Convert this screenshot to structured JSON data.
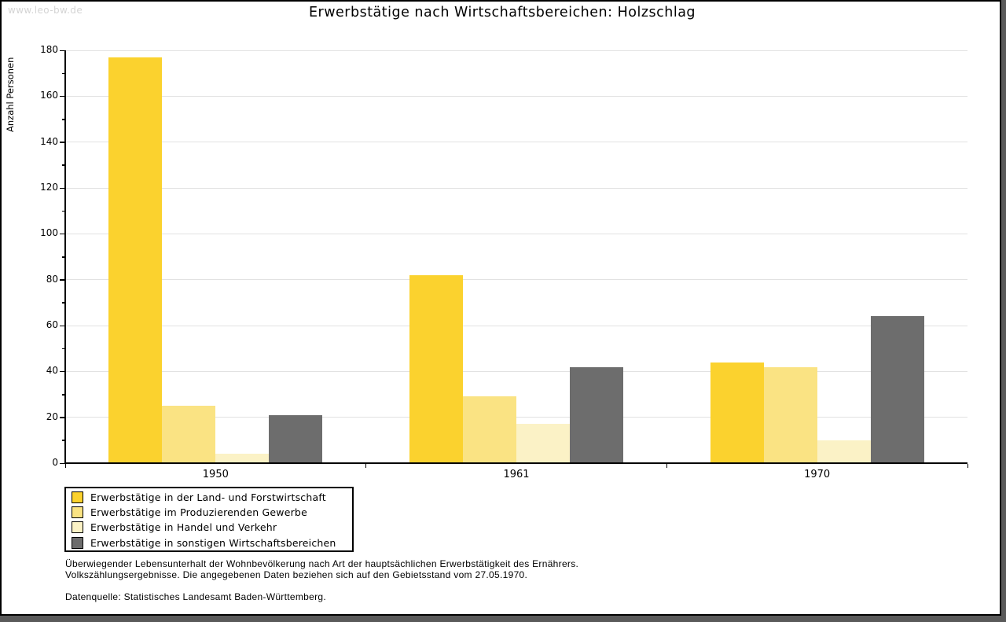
{
  "watermark": "www.leo-bw.de",
  "chart_data": {
    "type": "bar",
    "title": "Erwerbstätige nach Wirtschaftsbereichen: Holzschlag",
    "xlabel": "",
    "ylabel": "Anzahl Personen",
    "categories": [
      "1950",
      "1961",
      "1970"
    ],
    "series": [
      {
        "name": "Erwerbstätige in der Land- und Forstwirtschaft",
        "color": "#FBD22E",
        "values": [
          177,
          82,
          44
        ]
      },
      {
        "name": "Erwerbstätige im Produzierenden Gewerbe",
        "color": "#FAE383",
        "values": [
          25,
          29,
          42
        ]
      },
      {
        "name": "Erwerbstätige in Handel und Verkehr",
        "color": "#FBF2C6",
        "values": [
          4,
          17,
          10
        ]
      },
      {
        "name": "Erwerbstätige in sonstigen Wirtschaftsbereichen",
        "color": "#6D6D6D",
        "values": [
          21,
          42,
          64
        ]
      }
    ],
    "ylim": [
      0,
      180
    ],
    "ytick_step": 20,
    "minor_tick_step": 10,
    "grid": "horizontal",
    "legend_position": "bottom-left"
  },
  "footer": {
    "line1": "Überwiegender Lebensunterhalt der Wohnbevölkerung nach Art der hauptsächlichen Erwerbstätigkeit des Ernährers.",
    "line2": "Volkszählungsergebnisse. Die angegebenen Daten beziehen sich auf den Gebietsstand vom 27.05.1970.",
    "source": "Datenquelle: Statistisches Landesamt Baden-Württemberg."
  },
  "colors": {
    "gridline": "#e2e2e2",
    "axis": "#000000",
    "frame_shadow": "#5a5a5a",
    "watermark": "#d4d4d4",
    "background": "#ffffff"
  }
}
